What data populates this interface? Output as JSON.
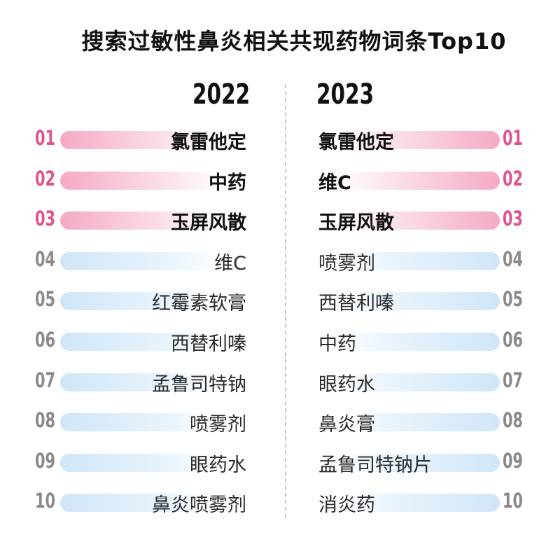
{
  "title": "搜索过敏性鼻炎相关共现药物词条Top10",
  "left": {
    "year": "2022",
    "items": [
      {
        "rank": "01",
        "name": "氯雷他定"
      },
      {
        "rank": "02",
        "name": "中药"
      },
      {
        "rank": "03",
        "name": "玉屏风散"
      },
      {
        "rank": "04",
        "name": "维C"
      },
      {
        "rank": "05",
        "name": "红霉素软膏"
      },
      {
        "rank": "06",
        "name": "西替利嗪"
      },
      {
        "rank": "07",
        "name": "孟鲁司特钠"
      },
      {
        "rank": "08",
        "name": "喷雾剂"
      },
      {
        "rank": "09",
        "name": "眼药水"
      },
      {
        "rank": "10",
        "name": "鼻炎喷雾剂"
      }
    ]
  },
  "right": {
    "year": "2023",
    "items": [
      {
        "rank": "01",
        "name": "氯雷他定"
      },
      {
        "rank": "02",
        "name": "维C"
      },
      {
        "rank": "03",
        "name": "玉屏风散"
      },
      {
        "rank": "04",
        "name": "喷雾剂"
      },
      {
        "rank": "05",
        "name": "西替利嗪"
      },
      {
        "rank": "06",
        "name": "中药"
      },
      {
        "rank": "07",
        "name": "眼药水"
      },
      {
        "rank": "08",
        "name": "鼻炎膏"
      },
      {
        "rank": "09",
        "name": "孟鲁司特钠片"
      },
      {
        "rank": "10",
        "name": "消炎药"
      }
    ]
  },
  "colors": {
    "top_rank": "#e0538e",
    "rest_rank": "#8a8a8a",
    "top_bar": "#f5a9c6",
    "rest_bar": "#cfe6f8"
  }
}
